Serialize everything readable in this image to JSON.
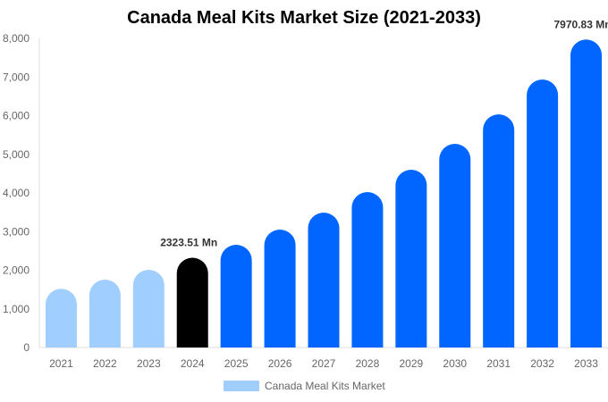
{
  "chart_data": {
    "type": "bar",
    "title": "Canada Meal Kits Market Size (2021-2033)",
    "categories": [
      "2021",
      "2022",
      "2023",
      "2024",
      "2025",
      "2026",
      "2027",
      "2028",
      "2029",
      "2030",
      "2031",
      "2032",
      "2033"
    ],
    "series": [
      {
        "name": "Canada Meal Kits Market",
        "values": [
          1520,
          1757,
          2011,
          2323.51,
          2659,
          3052,
          3491,
          4023,
          4601,
          5272,
          6035,
          6936,
          7970.83
        ]
      }
    ],
    "data_labels": {
      "2024": "2323.51 Mn",
      "2033": "7970.83 Mn"
    },
    "ylim": [
      0,
      8000
    ],
    "yticks": [
      0,
      1000,
      2000,
      3000,
      4000,
      5000,
      6000,
      7000,
      8000
    ],
    "ytick_labels": [
      "0",
      "1,000",
      "2,000",
      "3,000",
      "4,000",
      "5,000",
      "6,000",
      "7,000",
      "8,000"
    ],
    "xlabel": "",
    "ylabel": "",
    "grid": false,
    "legend_position": "bottom",
    "colors": {
      "historical": "#a0cfff",
      "base_year": "#000000",
      "forecast": "#0066ff",
      "legend": "#a0cfff"
    }
  }
}
